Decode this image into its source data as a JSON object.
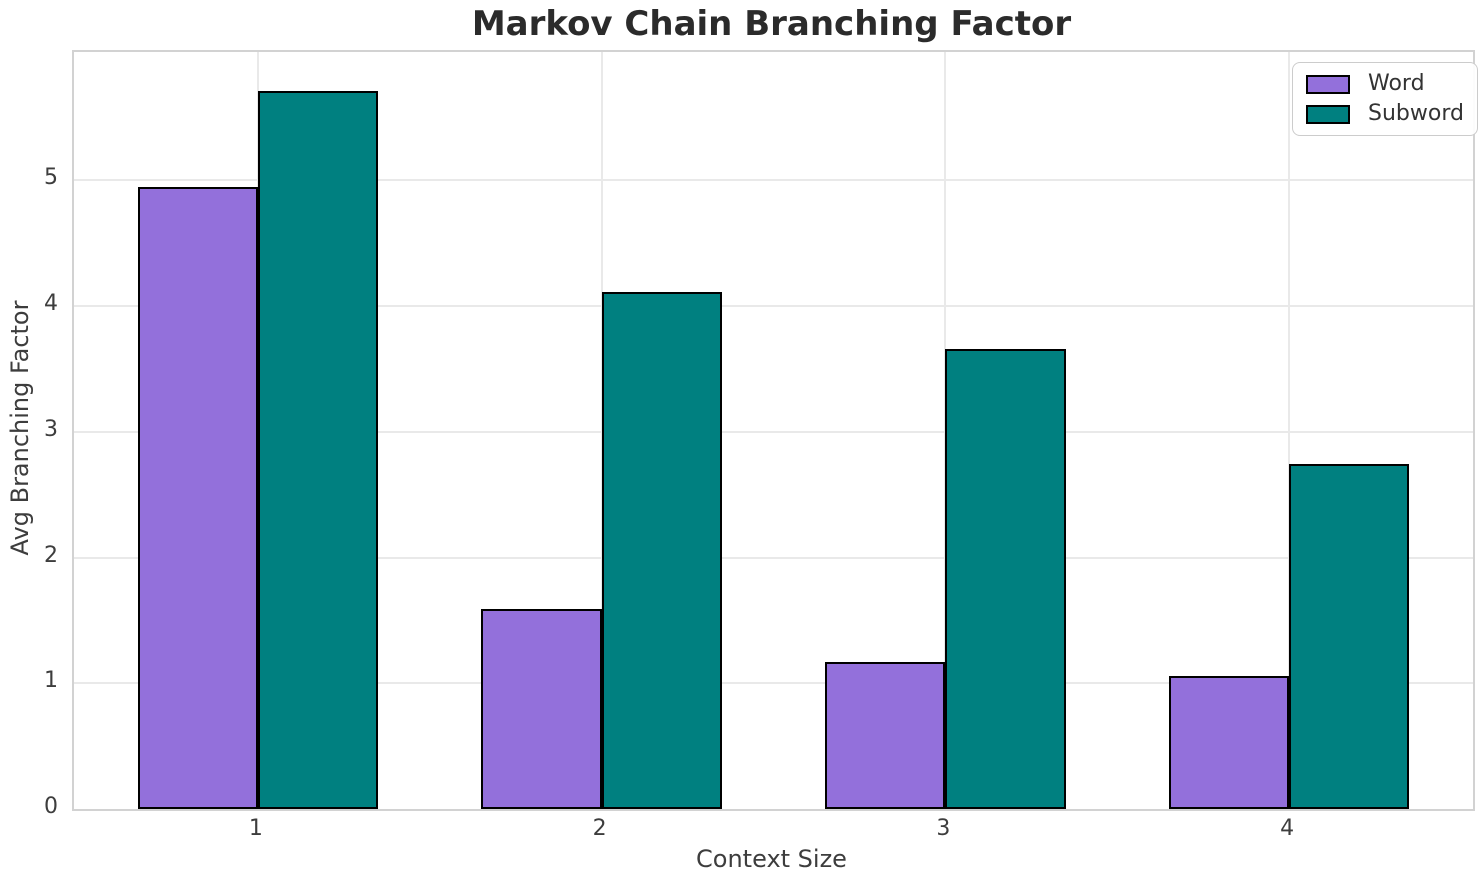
{
  "title": "Markov Chain Branching Factor",
  "chart_data": {
    "type": "bar",
    "title": "Markov Chain Branching Factor",
    "xlabel": "Context Size",
    "ylabel": "Avg Branching Factor",
    "categories": [
      1,
      2,
      3,
      4
    ],
    "series": [
      {
        "name": "Word",
        "color": "#9370DB",
        "values": [
          4.95,
          1.59,
          1.17,
          1.06
        ]
      },
      {
        "name": "Subword",
        "color": "#008080",
        "values": [
          5.71,
          4.11,
          3.66,
          2.74
        ]
      }
    ],
    "bar_width": 0.35,
    "bar_edge_color": "#000000",
    "xlim": [
      0.465,
      4.535
    ],
    "ylim": [
      0,
      6.02
    ],
    "yticks": [
      0,
      1,
      2,
      3,
      4,
      5
    ],
    "xticks": [
      1,
      2,
      3,
      4
    ],
    "grid": true,
    "legend_position": "upper right"
  },
  "colors": {
    "background": "#ffffff",
    "grid": "#e9e9e9",
    "spine": "#d2d2d2",
    "title_text": "#2b2b2b",
    "label_text": "#3d3d3d"
  }
}
